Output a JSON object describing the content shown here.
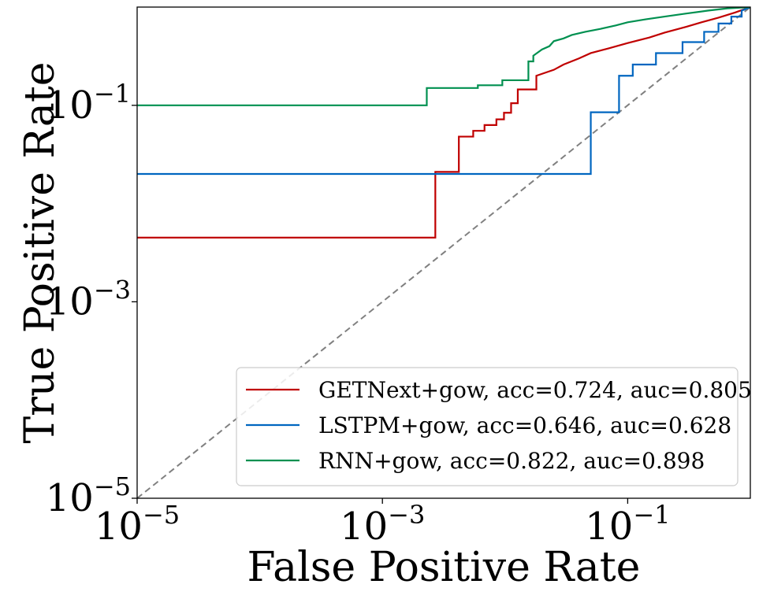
{
  "chart_data": {
    "type": "line",
    "xlabel": "False Positive Rate",
    "ylabel": "True Positive Rate",
    "xscale": "log",
    "yscale": "log",
    "xlim": [
      1e-05,
      1
    ],
    "ylim": [
      1e-05,
      1
    ],
    "xticks": [
      {
        "value": 1e-05,
        "base": "10",
        "exp": "−5"
      },
      {
        "value": 0.001,
        "base": "10",
        "exp": "−3"
      },
      {
        "value": 0.1,
        "base": "10",
        "exp": "−1"
      }
    ],
    "yticks": [
      {
        "value": 1e-05,
        "base": "10",
        "exp": "−5"
      },
      {
        "value": 0.001,
        "base": "10",
        "exp": "−3"
      },
      {
        "value": 0.1,
        "base": "10",
        "exp": "−1"
      }
    ],
    "legend_position": "lower-right",
    "grid": false,
    "diagonal": {
      "style": "dashed",
      "color": "#808080"
    },
    "series": [
      {
        "name": "GETNext+gow, acc=0.724, auc=0.805",
        "color": "#c00000",
        "step": true,
        "x": [
          1e-05,
          0.0027,
          0.0027,
          0.0042,
          0.0042,
          0.0055,
          0.0055,
          0.0068,
          0.0068,
          0.0085,
          0.0085,
          0.0098,
          0.0098,
          0.0112,
          0.0112,
          0.0127,
          0.0127,
          0.018,
          0.018,
          0.025,
          0.03,
          0.04,
          0.05,
          0.07,
          0.1,
          0.15,
          0.2,
          0.3,
          0.4,
          0.55,
          0.75,
          1.0
        ],
        "y": [
          0.0045,
          0.0045,
          0.021,
          0.021,
          0.048,
          0.048,
          0.055,
          0.055,
          0.063,
          0.063,
          0.072,
          0.072,
          0.084,
          0.084,
          0.105,
          0.105,
          0.145,
          0.145,
          0.2,
          0.23,
          0.26,
          0.3,
          0.34,
          0.38,
          0.43,
          0.49,
          0.55,
          0.63,
          0.7,
          0.78,
          0.88,
          1.0
        ]
      },
      {
        "name": "LSTPM+gow, acc=0.646, auc=0.628",
        "color": "#0066c0",
        "step": true,
        "x": [
          1e-05,
          0.05,
          0.05,
          0.085,
          0.085,
          0.11,
          0.11,
          0.17,
          0.17,
          0.28,
          0.28,
          0.42,
          0.42,
          0.55,
          0.55,
          0.7,
          0.7,
          0.85,
          0.85,
          1.0
        ],
        "y": [
          0.02,
          0.02,
          0.085,
          0.085,
          0.2,
          0.2,
          0.26,
          0.26,
          0.34,
          0.34,
          0.44,
          0.44,
          0.56,
          0.56,
          0.68,
          0.68,
          0.8,
          0.8,
          0.92,
          1.0
        ]
      },
      {
        "name": "RNN+gow, acc=0.822, auc=0.898",
        "color": "#009050",
        "step": true,
        "x": [
          1e-05,
          0.0023,
          0.0023,
          0.006,
          0.006,
          0.0095,
          0.0095,
          0.0155,
          0.0155,
          0.017,
          0.017,
          0.02,
          0.023,
          0.025,
          0.03,
          0.035,
          0.045,
          0.06,
          0.08,
          0.1,
          0.14,
          0.2,
          0.3,
          0.45,
          0.65,
          1.0
        ],
        "y": [
          0.1,
          0.1,
          0.15,
          0.15,
          0.16,
          0.16,
          0.18,
          0.18,
          0.28,
          0.28,
          0.32,
          0.37,
          0.4,
          0.45,
          0.48,
          0.52,
          0.56,
          0.6,
          0.65,
          0.7,
          0.75,
          0.8,
          0.86,
          0.92,
          0.97,
          1.0
        ]
      }
    ]
  }
}
